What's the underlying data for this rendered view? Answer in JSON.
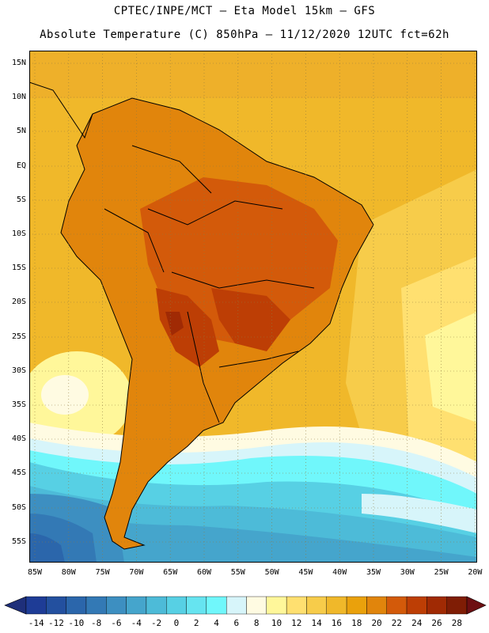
{
  "header": {
    "line1": "CPTEC/INPE/MCT –  Eta Model 15km – GFS",
    "line2": "Absolute Temperature (C) 850hPa – 11/12/2020 12UTC fct=62h"
  },
  "map": {
    "lat_labels": [
      "15N",
      "10N",
      "5N",
      "EQ",
      "5S",
      "10S",
      "15S",
      "20S",
      "25S",
      "30S",
      "35S",
      "40S",
      "45S",
      "50S",
      "55S"
    ],
    "lon_labels": [
      "85W",
      "80W",
      "75W",
      "70W",
      "65W",
      "60W",
      "55W",
      "50W",
      "45W",
      "40W",
      "35W",
      "30W",
      "25W",
      "20W"
    ]
  },
  "colorbar": {
    "labels": [
      "-14",
      "-12",
      "-10",
      "-8",
      "-6",
      "-4",
      "-2",
      "0",
      "2",
      "4",
      "6",
      "8",
      "10",
      "12",
      "14",
      "16",
      "18",
      "20",
      "22",
      "24",
      "26",
      "28"
    ],
    "colors": [
      "#1e3c96",
      "#23509f",
      "#2b66ab",
      "#3379b5",
      "#3d8fc1",
      "#45a5cc",
      "#4dbbd8",
      "#57d0e4",
      "#66e4f0",
      "#70f7fb",
      "#d7f5fa",
      "#fffbe2",
      "#fff79a",
      "#ffe070",
      "#f7cc4a",
      "#f0b82a",
      "#eaa10c",
      "#e1850c",
      "#d35a0a",
      "#bd3e05",
      "#a02a04",
      "#7f1d05"
    ]
  }
}
